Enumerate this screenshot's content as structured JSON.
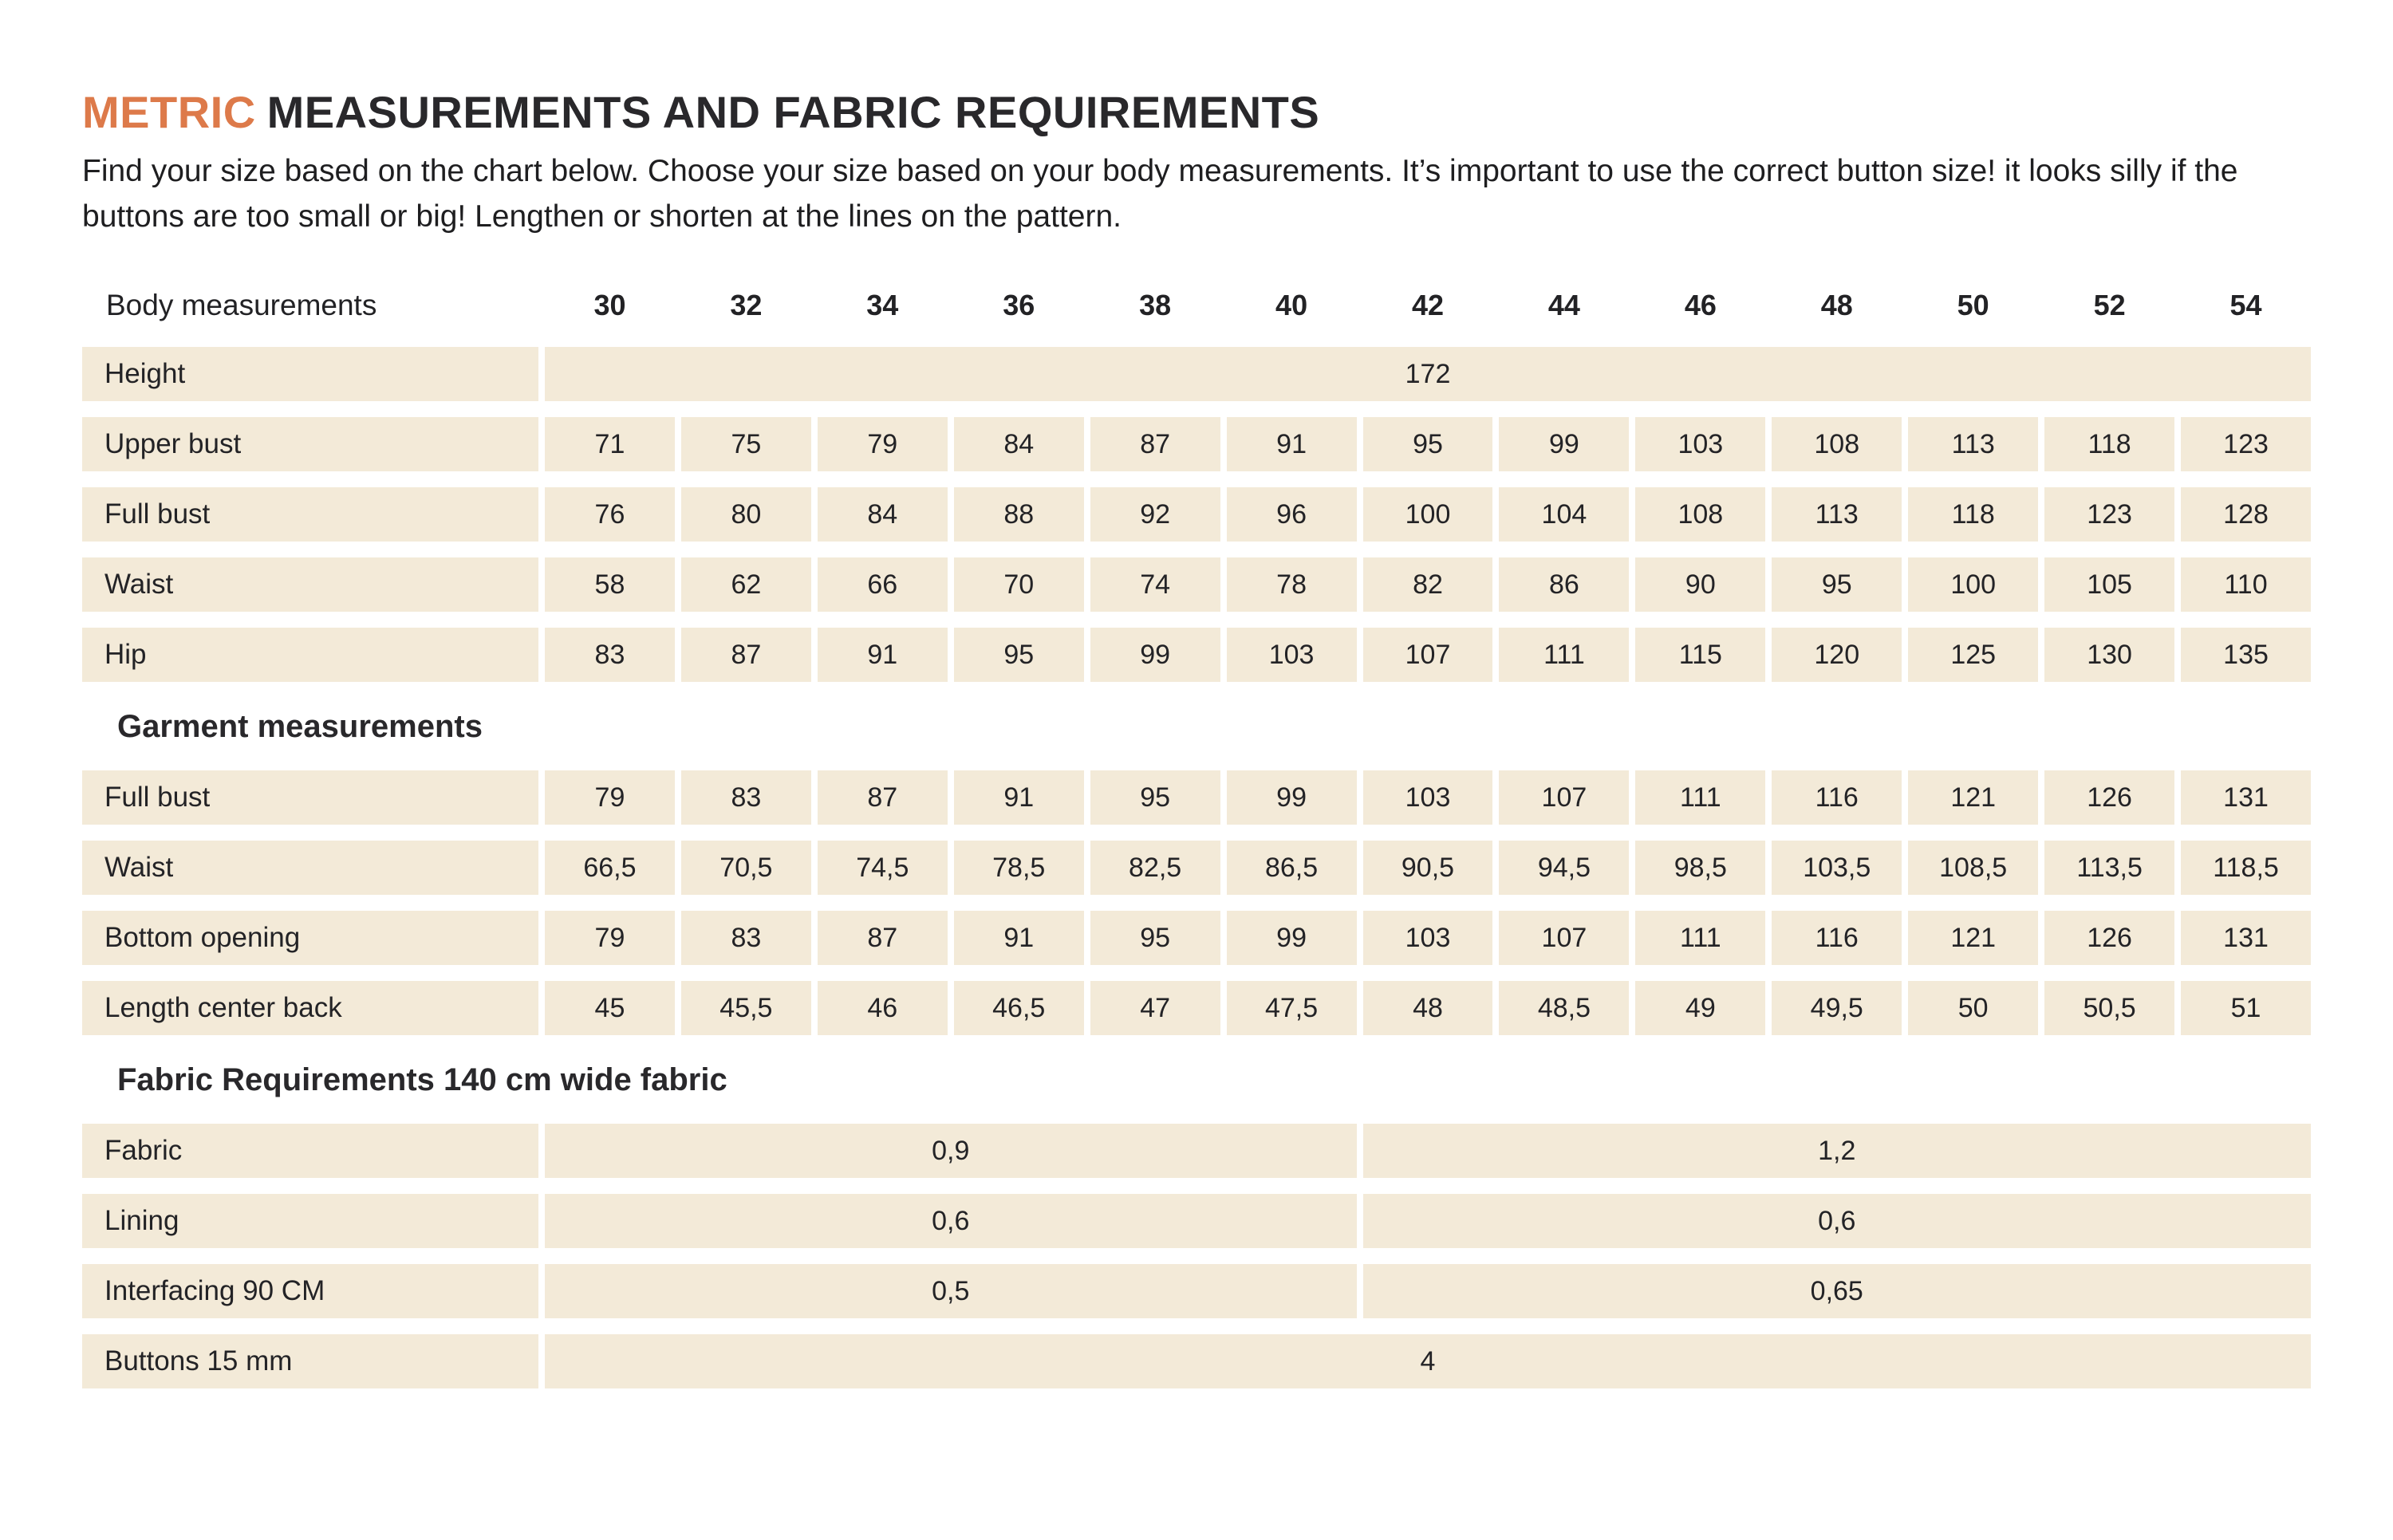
{
  "title": {
    "highlight": "METRIC",
    "rest": "MEASUREMENTS AND FABRIC REQUIREMENTS"
  },
  "intro": "Find your size based on the chart below. Choose your size based on your body measurements.  It’s important to use the correct button size! it looks silly if the buttons are too small or big! Lengthen or shorten at the lines on the pattern.",
  "colors": {
    "accent": "#dd7a4a",
    "cell_bg": "#f3ead8",
    "heading_dark": "#29282b",
    "text": "#232326"
  },
  "table": {
    "header": {
      "label": "Body measurements",
      "sizes": [
        "30",
        "32",
        "34",
        "36",
        "38",
        "40",
        "42",
        "44",
        "46",
        "48",
        "50",
        "52",
        "54"
      ]
    },
    "body_rows": [
      {
        "label": "Height",
        "span_all": "172"
      },
      {
        "label": "Upper bust",
        "values": [
          "71",
          "75",
          "79",
          "84",
          "87",
          "91",
          "95",
          "99",
          "103",
          "108",
          "113",
          "118",
          "123"
        ]
      },
      {
        "label": "Full bust",
        "values": [
          "76",
          "80",
          "84",
          "88",
          "92",
          "96",
          "100",
          "104",
          "108",
          "113",
          "118",
          "123",
          "128"
        ]
      },
      {
        "label": "Waist",
        "values": [
          "58",
          "62",
          "66",
          "70",
          "74",
          "78",
          "82",
          "86",
          "90",
          "95",
          "100",
          "105",
          "110"
        ]
      },
      {
        "label": "Hip",
        "values": [
          "83",
          "87",
          "91",
          "95",
          "99",
          "103",
          "107",
          "111",
          "115",
          "120",
          "125",
          "130",
          "135"
        ]
      }
    ],
    "garment_header": "Garment measurements",
    "garment_rows": [
      {
        "label": "Full bust",
        "values": [
          "79",
          "83",
          "87",
          "91",
          "95",
          "99",
          "103",
          "107",
          "111",
          "116",
          "121",
          "126",
          "131"
        ]
      },
      {
        "label": "Waist",
        "values": [
          "66,5",
          "70,5",
          "74,5",
          "78,5",
          "82,5",
          "86,5",
          "90,5",
          "94,5",
          "98,5",
          "103,5",
          "108,5",
          "113,5",
          "118,5"
        ]
      },
      {
        "label": "Bottom opening",
        "values": [
          "79",
          "83",
          "87",
          "91",
          "95",
          "99",
          "103",
          "107",
          "111",
          "116",
          "121",
          "126",
          "131"
        ]
      },
      {
        "label": "Length center back",
        "values": [
          "45",
          "45,5",
          "46",
          "46,5",
          "47",
          "47,5",
          "48",
          "48,5",
          "49",
          "49,5",
          "50",
          "50,5",
          "51"
        ]
      }
    ],
    "fabric_header": "Fabric Requirements 140 cm wide fabric",
    "fabric_rows": [
      {
        "label": "Fabric",
        "left": "0,9",
        "right": "1,2"
      },
      {
        "label": "Lining",
        "left": "0,6",
        "right": "0,6"
      },
      {
        "label": "Interfacing  90 CM",
        "left": "0,5",
        "right": "0,65"
      },
      {
        "label": "Buttons 15 mm",
        "span_all": "4"
      }
    ]
  }
}
